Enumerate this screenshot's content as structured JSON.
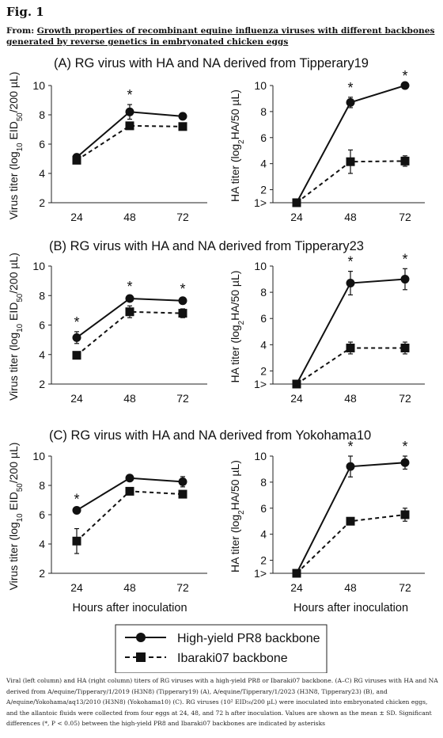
{
  "header": {
    "fig_label": "Fig. 1",
    "from_prefix": "From: ",
    "from_link": "Growth properties of recombinant equine influenza viruses with different backbones generated by reverse genetics in embryonated chicken eggs"
  },
  "chart_data": [
    {
      "type": "line",
      "panel": "A-left",
      "title": "(A) RG virus with HA and NA derived from Tipperary19",
      "xlabel": "",
      "ylabel": "Virus titer (log10 EID50/200 µL)",
      "x": [
        24,
        48,
        72
      ],
      "yticks": [
        "2",
        "4",
        "6",
        "8",
        "10"
      ],
      "ylim": [
        2,
        10
      ],
      "series": [
        {
          "name": "High-yield PR8 backbone",
          "values": [
            5.1,
            8.2,
            7.9
          ],
          "sd": [
            0.1,
            0.5,
            0.15
          ]
        },
        {
          "name": "Ibaraki07 backbone",
          "values": [
            4.9,
            7.25,
            7.2
          ],
          "sd": [
            0.15,
            0.15,
            0.15
          ]
        }
      ],
      "significance": [
        "",
        "*",
        ""
      ]
    },
    {
      "type": "line",
      "panel": "A-right",
      "title": "",
      "xlabel": "",
      "ylabel": "HA titer (log2HA/50 µL)",
      "x": [
        24,
        48,
        72
      ],
      "yticks": [
        "1>",
        "2",
        "4",
        "6",
        "8",
        "10"
      ],
      "ylim": [
        1,
        10
      ],
      "series": [
        {
          "name": "High-yield PR8 backbone",
          "values": [
            1,
            8.7,
            10
          ],
          "sd": [
            0,
            0.4,
            0
          ]
        },
        {
          "name": "Ibaraki07 backbone",
          "values": [
            1,
            4.15,
            4.2
          ],
          "sd": [
            0,
            0.9,
            0.4
          ]
        }
      ],
      "significance": [
        "",
        "*",
        "*"
      ]
    },
    {
      "type": "line",
      "panel": "B-left",
      "title": "(B) RG virus with HA and NA derived from Tipperary23",
      "xlabel": "",
      "ylabel": "Virus titer (log10 EID50/200 µL)",
      "x": [
        24,
        48,
        72
      ],
      "yticks": [
        "2",
        "4",
        "6",
        "8",
        "10"
      ],
      "ylim": [
        2,
        10
      ],
      "series": [
        {
          "name": "High-yield PR8 backbone",
          "values": [
            5.15,
            7.8,
            7.65
          ],
          "sd": [
            0.4,
            0.15,
            0.15
          ]
        },
        {
          "name": "Ibaraki07 backbone",
          "values": [
            3.95,
            6.9,
            6.8
          ],
          "sd": [
            0.15,
            0.4,
            0.3
          ]
        }
      ],
      "significance": [
        "*",
        "*",
        "*"
      ]
    },
    {
      "type": "line",
      "panel": "B-right",
      "title": "",
      "xlabel": "",
      "ylabel": "HA titer (log2HA/50 µL)",
      "x": [
        24,
        48,
        72
      ],
      "yticks": [
        "1>",
        "2",
        "4",
        "6",
        "8",
        "10"
      ],
      "ylim": [
        1,
        10
      ],
      "series": [
        {
          "name": "High-yield PR8 backbone",
          "values": [
            1,
            8.7,
            9
          ],
          "sd": [
            0,
            0.9,
            0.8
          ]
        },
        {
          "name": "Ibaraki07 backbone",
          "values": [
            1,
            3.75,
            3.75
          ],
          "sd": [
            0,
            0.45,
            0.45
          ]
        }
      ],
      "significance": [
        "",
        "*",
        "*"
      ]
    },
    {
      "type": "line",
      "panel": "C-left",
      "title": "(C) RG virus with HA and NA derived from Yokohama10",
      "xlabel": "Hours after inoculation",
      "ylabel": "Virus titer (log10 EID50/200 µL)",
      "x": [
        24,
        48,
        72
      ],
      "yticks": [
        "2",
        "4",
        "6",
        "8",
        "10"
      ],
      "ylim": [
        2,
        10
      ],
      "series": [
        {
          "name": "High-yield PR8 backbone",
          "values": [
            6.3,
            8.5,
            8.25
          ],
          "sd": [
            0.1,
            0.1,
            0.35
          ]
        },
        {
          "name": "Ibaraki07 backbone",
          "values": [
            4.2,
            7.6,
            7.4
          ],
          "sd": [
            0.85,
            0.1,
            0.2
          ]
        }
      ],
      "significance": [
        "*",
        "",
        ""
      ]
    },
    {
      "type": "line",
      "panel": "C-right",
      "title": "",
      "xlabel": "Hours after inoculation",
      "ylabel": "HA titer (log2HA/50 µL)",
      "x": [
        24,
        48,
        72
      ],
      "yticks": [
        "1>",
        "2",
        "4",
        "6",
        "8",
        "10"
      ],
      "ylim": [
        1,
        10
      ],
      "series": [
        {
          "name": "High-yield PR8 backbone",
          "values": [
            1,
            9.2,
            9.5
          ],
          "sd": [
            0,
            0.8,
            0.5
          ]
        },
        {
          "name": "Ibaraki07 backbone",
          "values": [
            1,
            5,
            5.5
          ],
          "sd": [
            0,
            0.15,
            0.5
          ]
        }
      ],
      "significance": [
        "",
        "*",
        "*"
      ]
    }
  ],
  "legend": {
    "entries": [
      {
        "label": "High-yield PR8 backbone",
        "marker": "circle",
        "dash": "solid"
      },
      {
        "label": "Ibaraki07 backbone",
        "marker": "square",
        "dash": "dashed"
      }
    ]
  },
  "caption": "Viral (left column) and HA (right column) titers of RG viruses with a high-yield PR8 or Ibaraki07 backbone. (A–C) RG viruses with HA and NA derived from A/equine/Tipperary/1/2019 (H3N8) (Tipperary19) (A), A/equine/Tipperary/1/2023 (H3N8, Tipperary23) (B), and A/equine/Yokohama/aq13/2010 (H3N8) (Yokohama10) (C). RG viruses (10² EID₅₀/200 µL) were inoculated into embryonated chicken eggs, and the allantoic fluids were collected from four eggs at 24, 48, and 72 h after inoculation. Values are shown as the mean ± SD. Significant differences (*, P < 0.05) between the high-yield PR8 and Ibaraki07 backbones are indicated by asterisks"
}
